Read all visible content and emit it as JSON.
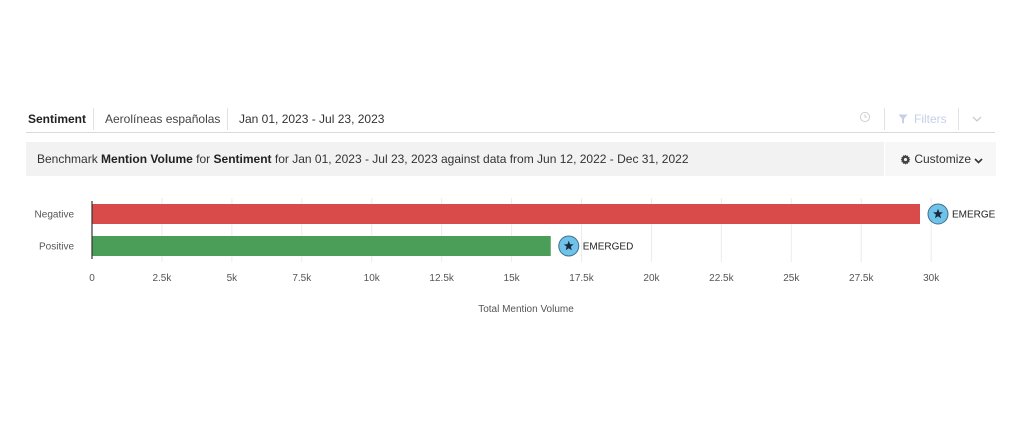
{
  "header": {
    "title": "Sentiment",
    "brand": "Aerolíneas españolas",
    "date_range": "Jan 01, 2023 - Jul 23, 2023",
    "filters_label": "Filters"
  },
  "benchmark": {
    "prefix": "Benchmark",
    "metric": "Mention Volume",
    "for1": "for",
    "subject": "Sentiment",
    "rest": "for Jan 01, 2023 - Jul 23, 2023 against data from Jun 12, 2022 - Dec 31, 2022",
    "customize_label": "Customize"
  },
  "colors": {
    "negative": "#d94a4a",
    "positive": "#4a9e57",
    "marker": "#6fc3ea"
  },
  "chart_data": {
    "type": "bar",
    "orientation": "horizontal",
    "categories": [
      "Negative",
      "Positive"
    ],
    "values": [
      29600,
      16400
    ],
    "annotations": [
      "EMERGED",
      "EMERGED"
    ],
    "xlabel": "Total Mention Volume",
    "ylabel": "",
    "xlim": [
      0,
      32500
    ],
    "x_ticks": [
      "0",
      "2.5k",
      "5k",
      "7.5k",
      "10k",
      "12.5k",
      "15k",
      "17.5k",
      "20k",
      "22.5k",
      "25k",
      "27.5k",
      "30k"
    ],
    "x_tick_values": [
      0,
      2500,
      5000,
      7500,
      10000,
      12500,
      15000,
      17500,
      20000,
      22500,
      25000,
      27500,
      30000
    ],
    "grid": true
  }
}
